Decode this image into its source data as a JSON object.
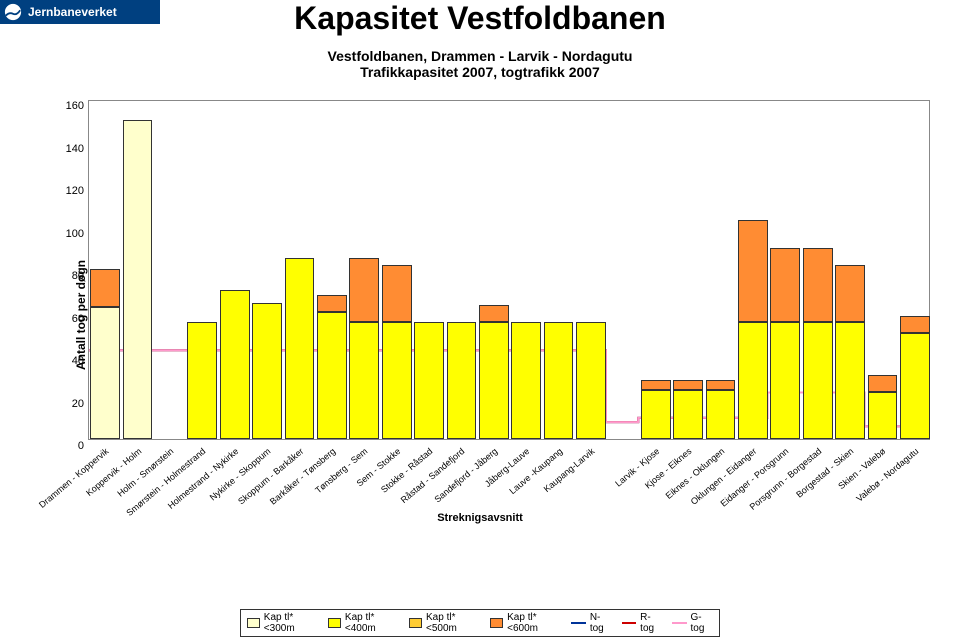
{
  "brand": {
    "name": "Jernbaneverket"
  },
  "title": "Kapasitet Vestfoldbanen",
  "subtitle": "Vestfoldbanen, Drammen - Larvik - Nordagutu\nTrafikkapasitet 2007, togtrafikk 2007",
  "y_axis": {
    "label": "Antall tog per døgn",
    "min": 0,
    "max": 160,
    "step": 20
  },
  "x_axis": {
    "title": "Streknigsavsnitt"
  },
  "colors": {
    "kap300": "#ffffcc",
    "kap400": "#ffff00",
    "kap500": "#ffcc33",
    "kap600": "#ff8c33",
    "n_tog": "#003399",
    "r_tog": "#cc0000",
    "g_tog": "#ff99cc",
    "border": "#333333",
    "grid": "#888888"
  },
  "legend": [
    {
      "label": "Kap tl*<300m",
      "type": "box",
      "colorKey": "kap300"
    },
    {
      "label": "Kap tl*<400m",
      "type": "box",
      "colorKey": "kap400"
    },
    {
      "label": "Kap tl*<500m",
      "type": "box",
      "colorKey": "kap500"
    },
    {
      "label": "Kap tl*<600m",
      "type": "box",
      "colorKey": "kap600"
    },
    {
      "label": "N-tog",
      "type": "line",
      "colorKey": "n_tog"
    },
    {
      "label": "R-tog",
      "type": "line",
      "colorKey": "r_tog"
    },
    {
      "label": "G-tog",
      "type": "line",
      "colorKey": "g_tog"
    }
  ],
  "segments": [
    {
      "label": "Drammen - Koppervik",
      "stack": [
        {
          "c": "kap300",
          "v": 62
        },
        {
          "c": "kap600",
          "v": 18
        }
      ],
      "n": 42,
      "r": 42,
      "g": 42
    },
    {
      "label": "Koppervik - Holm",
      "stack": [
        {
          "c": "kap300",
          "v": 150
        }
      ],
      "n": 42,
      "r": 42,
      "g": 42
    },
    {
      "label": "Holm - Smørstein",
      "stack": [],
      "n": 42,
      "r": 42,
      "g": 42
    },
    {
      "label": "Smørstein - Holmestrand",
      "stack": [
        {
          "c": "kap400",
          "v": 55
        }
      ],
      "n": 42,
      "r": 42,
      "g": 42
    },
    {
      "label": "Holmestrand - Nykirke",
      "stack": [
        {
          "c": "kap400",
          "v": 70
        }
      ],
      "n": 42,
      "r": 42,
      "g": 42
    },
    {
      "label": "Nykirke - Skoppum",
      "stack": [
        {
          "c": "kap400",
          "v": 64
        }
      ],
      "n": 42,
      "r": 42,
      "g": 42
    },
    {
      "label": "Skoppum - Barkåker",
      "stack": [
        {
          "c": "kap400",
          "v": 85
        }
      ],
      "n": 42,
      "r": 42,
      "g": 42
    },
    {
      "label": "Barkåker - Tønsberg",
      "stack": [
        {
          "c": "kap400",
          "v": 60
        },
        {
          "c": "kap600",
          "v": 8
        }
      ],
      "n": 42,
      "r": 42,
      "g": 42
    },
    {
      "label": "Tønsberg - Sem",
      "stack": [
        {
          "c": "kap400",
          "v": 55
        },
        {
          "c": "kap600",
          "v": 30
        }
      ],
      "n": 42,
      "r": 42,
      "g": 42
    },
    {
      "label": "Sem - Stokke",
      "stack": [
        {
          "c": "kap400",
          "v": 55
        },
        {
          "c": "kap600",
          "v": 27
        }
      ],
      "n": 42,
      "r": 42,
      "g": 42
    },
    {
      "label": "Stokke - Råstad",
      "stack": [
        {
          "c": "kap400",
          "v": 55
        }
      ],
      "n": 42,
      "r": 42,
      "g": 42
    },
    {
      "label": "Råstad - Sandefjord",
      "stack": [
        {
          "c": "kap400",
          "v": 55
        }
      ],
      "n": 42,
      "r": 42,
      "g": 42
    },
    {
      "label": "Sandefjord - Jåberg",
      "stack": [
        {
          "c": "kap400",
          "v": 55
        },
        {
          "c": "kap600",
          "v": 8
        }
      ],
      "n": 42,
      "r": 42,
      "g": 42
    },
    {
      "label": "Jåberg-Lauve",
      "stack": [
        {
          "c": "kap400",
          "v": 55
        }
      ],
      "n": 42,
      "r": 42,
      "g": 42
    },
    {
      "label": "Lauve -Kaupang",
      "stack": [
        {
          "c": "kap400",
          "v": 55
        }
      ],
      "n": 42,
      "r": 42,
      "g": 42
    },
    {
      "label": "Kaupang-Larvik",
      "stack": [
        {
          "c": "kap400",
          "v": 55
        }
      ],
      "n": 42,
      "r": 42,
      "g": 42
    },
    {
      "label": "",
      "stack": [],
      "n": 8,
      "r": 8,
      "g": 8
    },
    {
      "label": "Larvik - Kjose",
      "stack": [
        {
          "c": "kap400",
          "v": 23
        },
        {
          "c": "kap600",
          "v": 5
        }
      ],
      "n": 10,
      "r": 10,
      "g": 10
    },
    {
      "label": "Kjose - Eiknes",
      "stack": [
        {
          "c": "kap400",
          "v": 23
        },
        {
          "c": "kap600",
          "v": 5
        }
      ],
      "n": 10,
      "r": 10,
      "g": 10
    },
    {
      "label": "Eiknes - Oklungen",
      "stack": [
        {
          "c": "kap400",
          "v": 23
        },
        {
          "c": "kap600",
          "v": 5
        }
      ],
      "n": 10,
      "r": 10,
      "g": 10
    },
    {
      "label": "Oklungen - Eidanger",
      "stack": [
        {
          "c": "kap400",
          "v": 55
        },
        {
          "c": "kap600",
          "v": 48
        }
      ],
      "n": 10,
      "r": 10,
      "g": 10
    },
    {
      "label": "Eidanger - Porsgrunn",
      "stack": [
        {
          "c": "kap400",
          "v": 55
        },
        {
          "c": "kap600",
          "v": 35
        }
      ],
      "n": 22,
      "r": 22,
      "g": 22
    },
    {
      "label": "Porsgrunn - Borgestad",
      "stack": [
        {
          "c": "kap400",
          "v": 55
        },
        {
          "c": "kap600",
          "v": 35
        }
      ],
      "n": 22,
      "r": 22,
      "g": 22
    },
    {
      "label": "Borgestad - Skien",
      "stack": [
        {
          "c": "kap400",
          "v": 55
        },
        {
          "c": "kap600",
          "v": 27
        }
      ],
      "n": 22,
      "r": 22,
      "g": 22
    },
    {
      "label": "Skien - Valebø",
      "stack": [
        {
          "c": "kap400",
          "v": 22
        },
        {
          "c": "kap600",
          "v": 8
        }
      ],
      "n": 6,
      "r": 6,
      "g": 6
    },
    {
      "label": "Valebø - Nordagutu",
      "stack": [
        {
          "c": "kap400",
          "v": 50
        },
        {
          "c": "kap600",
          "v": 8
        }
      ],
      "n": 6,
      "r": 6,
      "g": 6
    }
  ]
}
